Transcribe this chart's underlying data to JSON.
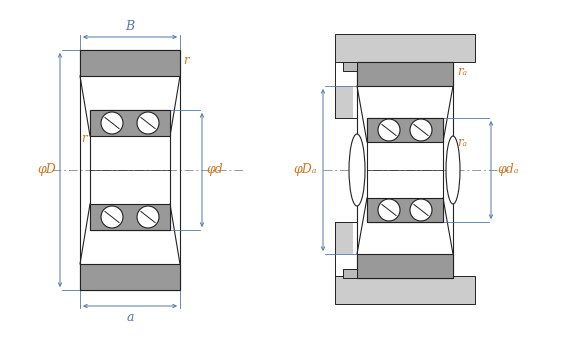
{
  "bg_color": "#ffffff",
  "gray_fill": "#999999",
  "gray_light": "#bbbbbb",
  "gray_bg": "#cccccc",
  "line_color": "#222222",
  "dim_color": "#5577aa",
  "label_orange": "#cc7722",
  "center_line_color": "#999999",
  "labels": {
    "B": "B",
    "r_top": "r",
    "r_mid": "r",
    "phiD": "φD",
    "phid": "φd",
    "a": "a",
    "phiDa": "φDₐ",
    "phida": "φdₐ",
    "ra_top": "rₐ",
    "ra_mid": "rₐ"
  }
}
